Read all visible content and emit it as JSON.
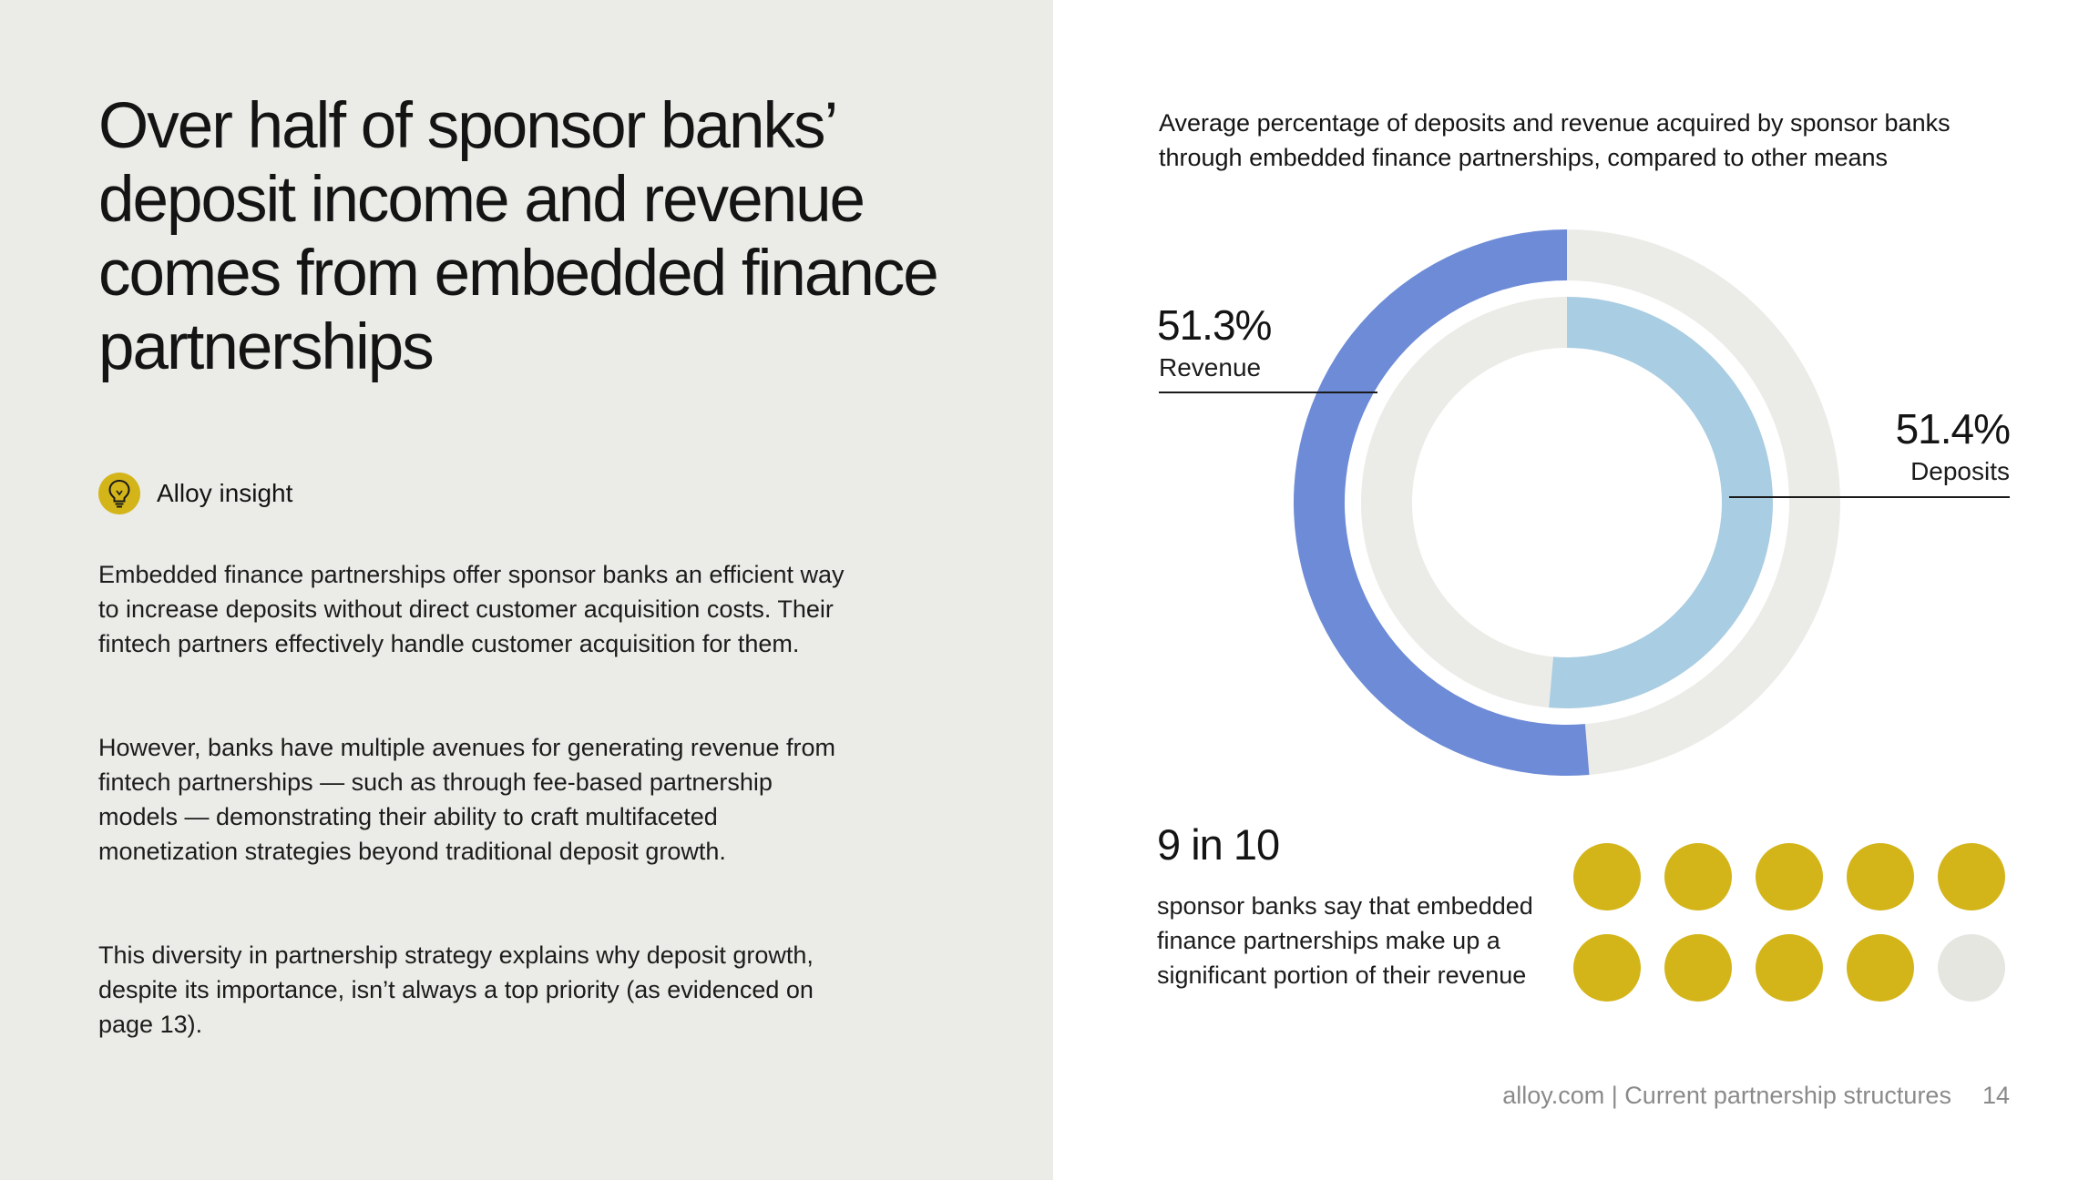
{
  "headline": "Over half of sponsor banks’ deposit income and revenue comes from embedded finance partnerships",
  "insight": {
    "icon": "lightbulb-icon",
    "label": "Alloy insight"
  },
  "body": [
    "Embedded finance partnerships offer sponsor banks an efficient way to increase deposits without direct customer acquisition costs. Their fintech partners effectively handle customer acquisition for them.",
    "However, banks have multiple avenues for generating revenue from fintech partnerships — such as through fee-based partnership models — demonstrating their ability to craft multifaceted monetization strategies beyond traditional deposit growth.",
    "This diversity in partnership strategy explains why deposit growth, despite its importance, isn’t always a top priority (as evidenced on page 13)."
  ],
  "chart_title": "Average percentage of deposits and revenue acquired by sponsor banks through embedded finance partnerships, compared to other means",
  "callouts": {
    "revenue": {
      "value": "51.3%",
      "label": "Revenue"
    },
    "deposits": {
      "value": "51.4%",
      "label": "Deposits"
    }
  },
  "chart_data": [
    {
      "type": "pie",
      "subtype": "nested-donut",
      "title": "Average percentage of deposits and revenue acquired by sponsor banks through embedded finance partnerships, compared to other means",
      "series": [
        {
          "name": "Revenue",
          "ring": "outer",
          "values": [
            51.3,
            48.7
          ]
        },
        {
          "name": "Deposits",
          "ring": "inner",
          "values": [
            51.4,
            48.6
          ]
        }
      ],
      "colors": {
        "revenue": "#6d8bd6",
        "deposits": "#a9cde2",
        "remainder": "#ebebe7"
      }
    },
    {
      "type": "pictograph",
      "total": 10,
      "filled": 9,
      "colors": {
        "filled": "#d3b51a",
        "empty": "#e6e6e1"
      }
    }
  ],
  "stat": {
    "big": "9 in 10",
    "desc": "sponsor banks say that embedded finance partnerships make up a significant portion of their revenue"
  },
  "footer": {
    "source": "alloy.com | Current partnership structures",
    "page": "14"
  }
}
